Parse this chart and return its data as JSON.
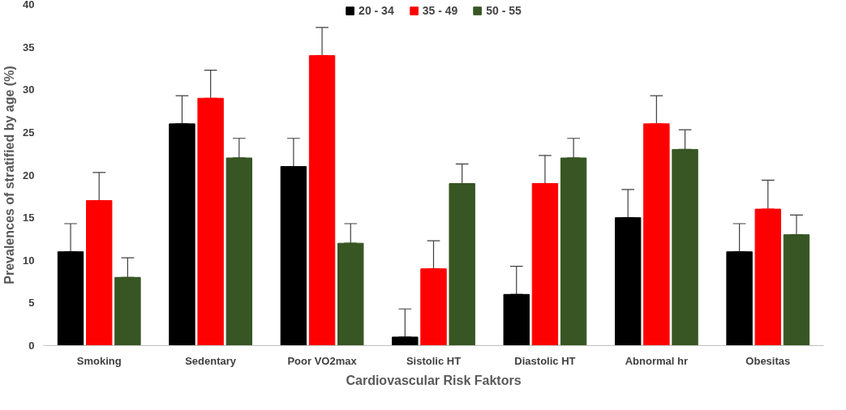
{
  "chart_data": {
    "type": "bar",
    "xlabel": "Cardiovascular Risk Faktors",
    "ylabel": "Prevalences of stratified by age (%)",
    "categories": [
      "Smoking",
      "Sedentary",
      "Poor VO2max",
      "Sistolic HT",
      "Diastolic HT",
      "Abnormal hr",
      "Obesitas"
    ],
    "series": [
      {
        "name": "20 - 34",
        "color": "#000000",
        "values": [
          11,
          26,
          21,
          1,
          6,
          15,
          11
        ],
        "errors": [
          [
            11,
            14.3
          ],
          [
            26,
            29.3
          ],
          [
            21,
            24.3
          ],
          [
            1,
            4.3
          ],
          [
            6,
            9.3
          ],
          [
            15,
            18.3
          ],
          [
            11,
            14.3
          ]
        ]
      },
      {
        "name": "35 - 49",
        "color": "#ff0000",
        "values": [
          17,
          29,
          34,
          9,
          19,
          26,
          16
        ],
        "errors": [
          [
            17,
            20.3
          ],
          [
            29,
            32.3
          ],
          [
            34,
            37.3
          ],
          [
            9,
            12.3
          ],
          [
            19,
            22.3
          ],
          [
            26,
            29.3
          ],
          [
            16,
            19.4
          ]
        ]
      },
      {
        "name": "50 - 55",
        "color": "#375623",
        "values": [
          8,
          22,
          12,
          19,
          22,
          23,
          13
        ],
        "errors": [
          [
            8,
            10.3
          ],
          [
            22,
            24.3
          ],
          [
            12,
            14.3
          ],
          [
            19,
            21.3
          ],
          [
            22,
            24.3
          ],
          [
            23,
            25.3
          ],
          [
            13,
            15.3
          ]
        ]
      }
    ],
    "ylim": [
      0,
      40
    ],
    "yticks": [
      0,
      5,
      10,
      15,
      20,
      25,
      30,
      35,
      40
    ],
    "grid": false,
    "legend": "top"
  }
}
